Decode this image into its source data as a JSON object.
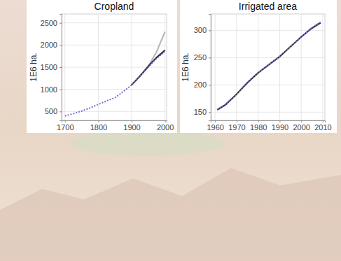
{
  "chart_data": [
    {
      "type": "line",
      "title": "Cropland",
      "ylabel": "1E6 ha.",
      "x": [
        1700,
        1725,
        1750,
        1775,
        1800,
        1825,
        1850,
        1875,
        1900,
        1925,
        1950,
        1975,
        2000
      ],
      "series": [
        {
          "color": "#b8b8b8",
          "line_style": "solid",
          "values": [
            null,
            null,
            null,
            null,
            null,
            null,
            null,
            null,
            null,
            null,
            1520,
            1850,
            2300
          ]
        },
        {
          "color": "#2b2b3a",
          "line_style": "solid",
          "values": [
            null,
            null,
            null,
            null,
            null,
            null,
            null,
            null,
            1100,
            1300,
            1520,
            1720,
            1880
          ]
        },
        {
          "color": "#6f72c8",
          "line_style": "dotted",
          "values": [
            400,
            450,
            510,
            580,
            660,
            740,
            810,
            950,
            1100,
            1300,
            1500,
            1700,
            1850
          ]
        }
      ],
      "xlim": [
        1690,
        2005
      ],
      "ylim": [
        300,
        2700
      ],
      "xticks": [
        1700,
        1800,
        1900,
        2000
      ],
      "yticks": [
        500,
        1000,
        1500,
        2000,
        2500
      ],
      "grid": true
    },
    {
      "type": "line",
      "title": "Irrigated area",
      "ylabel": "1E6 ha.",
      "x": [
        1961,
        1965,
        1970,
        1975,
        1980,
        1985,
        1990,
        1995,
        2000,
        2005,
        2009
      ],
      "series": [
        {
          "color": "#2b2b3a",
          "line_style": "solid",
          "values": [
            154,
            164,
            183,
            204,
            222,
            237,
            252,
            270,
            288,
            304,
            314
          ]
        },
        {
          "color": "#6f72c8",
          "line_style": "dotted",
          "values": [
            155,
            165,
            183,
            205,
            222,
            237,
            252,
            270,
            288,
            305,
            315
          ]
        }
      ],
      "xlim": [
        1958,
        2011
      ],
      "ylim": [
        135,
        330
      ],
      "xticks": [
        1960,
        1970,
        1980,
        1990,
        2000,
        2010
      ],
      "yticks": [
        150,
        200,
        250,
        300
      ],
      "grid": true
    }
  ]
}
